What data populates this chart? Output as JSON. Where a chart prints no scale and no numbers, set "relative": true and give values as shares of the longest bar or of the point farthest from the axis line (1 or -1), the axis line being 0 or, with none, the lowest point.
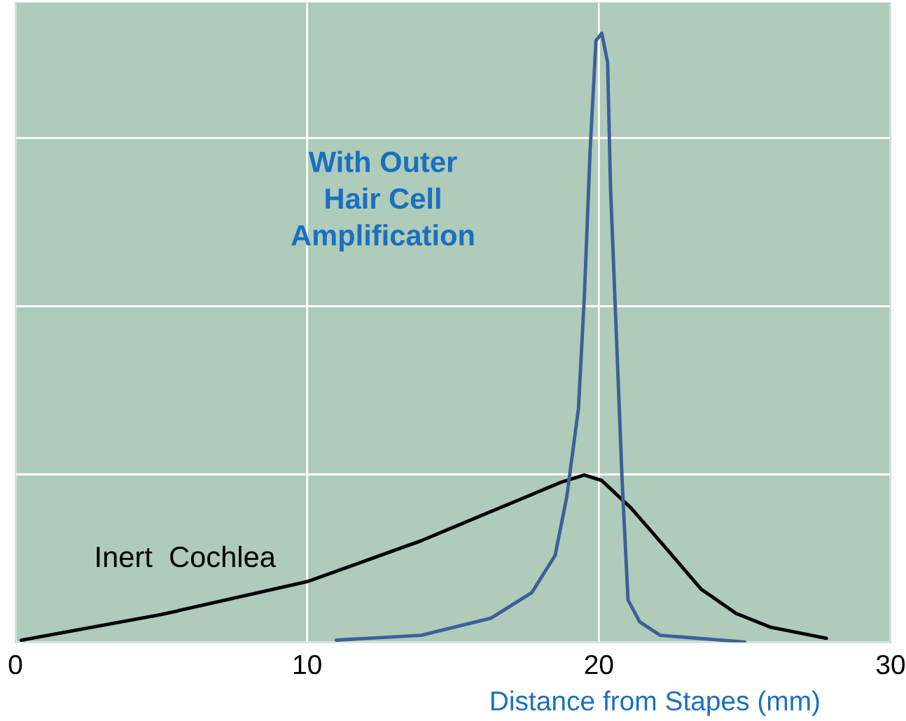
{
  "chart_data": {
    "type": "line",
    "relative": true,
    "xlabel": "Distance from Stapes (mm)",
    "xlim": [
      0,
      30
    ],
    "xticks": [
      0,
      10,
      20,
      30
    ],
    "grid": true,
    "series": [
      {
        "name": "Inert  Cochlea",
        "color": "#000000",
        "x": [
          0.2,
          5,
          10,
          13.9,
          16.3,
          18.7,
          19.5,
          20.1,
          21.1,
          22.3,
          23.5,
          24.7,
          25.9,
          27.8
        ],
        "values": [
          0.004,
          0.046,
          0.1,
          0.167,
          0.215,
          0.263,
          0.275,
          0.266,
          0.221,
          0.155,
          0.088,
          0.048,
          0.025,
          0.007
        ]
      },
      {
        "name": "With Outer\nHair Cell\nAmplification",
        "color": "#3e5f99",
        "x": [
          11.0,
          13.9,
          16.3,
          17.7,
          18.5,
          18.9,
          19.3,
          19.5,
          19.7,
          19.9,
          20.1,
          20.3,
          20.4,
          20.6,
          20.8,
          21.0,
          21.4,
          22.1,
          25.0
        ],
        "values": [
          0.004,
          0.012,
          0.04,
          0.082,
          0.143,
          0.239,
          0.384,
          0.565,
          0.807,
          0.988,
          1.0,
          0.952,
          0.746,
          0.505,
          0.263,
          0.07,
          0.034,
          0.012,
          0.001
        ]
      }
    ]
  }
}
